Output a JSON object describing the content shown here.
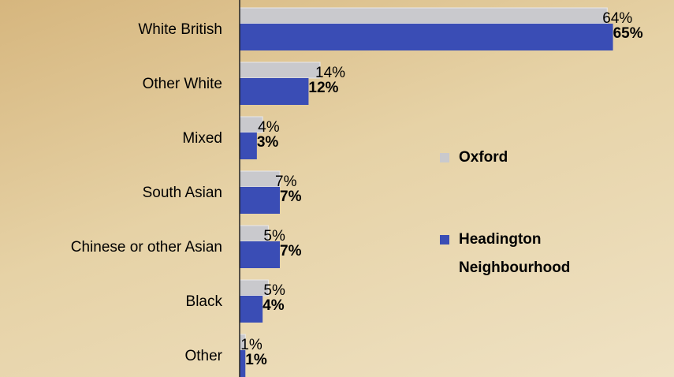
{
  "chart_data": {
    "type": "bar",
    "orientation": "horizontal",
    "categories": [
      "White British",
      "Other White",
      "Mixed",
      "South Asian",
      "Chinese or other Asian",
      "Black",
      "Other"
    ],
    "series": [
      {
        "name": "Oxford",
        "color": "#c9c9cd",
        "values": [
          64,
          14,
          4,
          7,
          5,
          5,
          1
        ],
        "value_labels": [
          "64%",
          "14%",
          "4%",
          "7%",
          "5%",
          "5%",
          "1%"
        ]
      },
      {
        "name": "Headington Neighbourhood",
        "color": "#3a4db5",
        "values": [
          65,
          12,
          3,
          7,
          7,
          4,
          1
        ],
        "value_labels": [
          "65%",
          "12%",
          "3%",
          "7%",
          "7%",
          "4%",
          "1%"
        ]
      }
    ],
    "xlim": [
      0,
      70
    ],
    "legend": "right"
  }
}
